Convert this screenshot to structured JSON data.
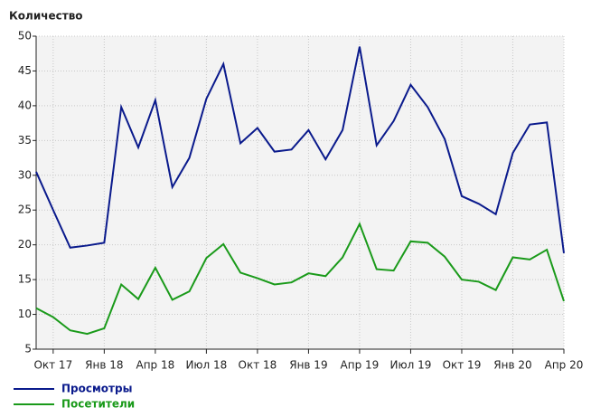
{
  "chart_data": {
    "type": "line",
    "y_label": "Количество",
    "categories": [
      null,
      "Окт 17",
      null,
      null,
      "Янв 18",
      null,
      null,
      "Апр 18",
      null,
      null,
      "Июл 18",
      null,
      null,
      "Окт 18",
      null,
      null,
      "Янв 19",
      null,
      null,
      "Апр 19",
      null,
      null,
      "Июл 19",
      null,
      null,
      "Окт 19",
      null,
      null,
      "Янв 20",
      null,
      null,
      "Апр 20"
    ],
    "series": [
      {
        "name": "Просмотры",
        "color": "#0a1a8c",
        "values": [
          30.5,
          25.0,
          19.6,
          19.9,
          20.3,
          39.8,
          34.0,
          40.8,
          28.3,
          32.5,
          41.0,
          46.0,
          34.6,
          36.8,
          33.4,
          33.7,
          36.5,
          32.3,
          36.5,
          48.5,
          34.3,
          37.8,
          43.0,
          39.8,
          35.2,
          27.0,
          25.9,
          24.4,
          33.2,
          37.3,
          37.6,
          18.8
        ]
      },
      {
        "name": "Посетители",
        "color": "#1a9a1a",
        "values": [
          10.9,
          9.6,
          7.7,
          7.2,
          8.0,
          14.3,
          12.2,
          16.7,
          12.1,
          13.3,
          18.1,
          20.1,
          16.0,
          15.2,
          14.3,
          14.6,
          15.9,
          15.5,
          18.2,
          23.0,
          16.5,
          16.3,
          20.5,
          20.3,
          18.3,
          15.0,
          14.7,
          13.5,
          18.2,
          17.9,
          19.3,
          11.9
        ]
      }
    ],
    "ylim": [
      5,
      50
    ],
    "yticks": [
      5,
      10,
      15,
      20,
      25,
      30,
      35,
      40,
      45,
      50
    ],
    "grid": true
  }
}
